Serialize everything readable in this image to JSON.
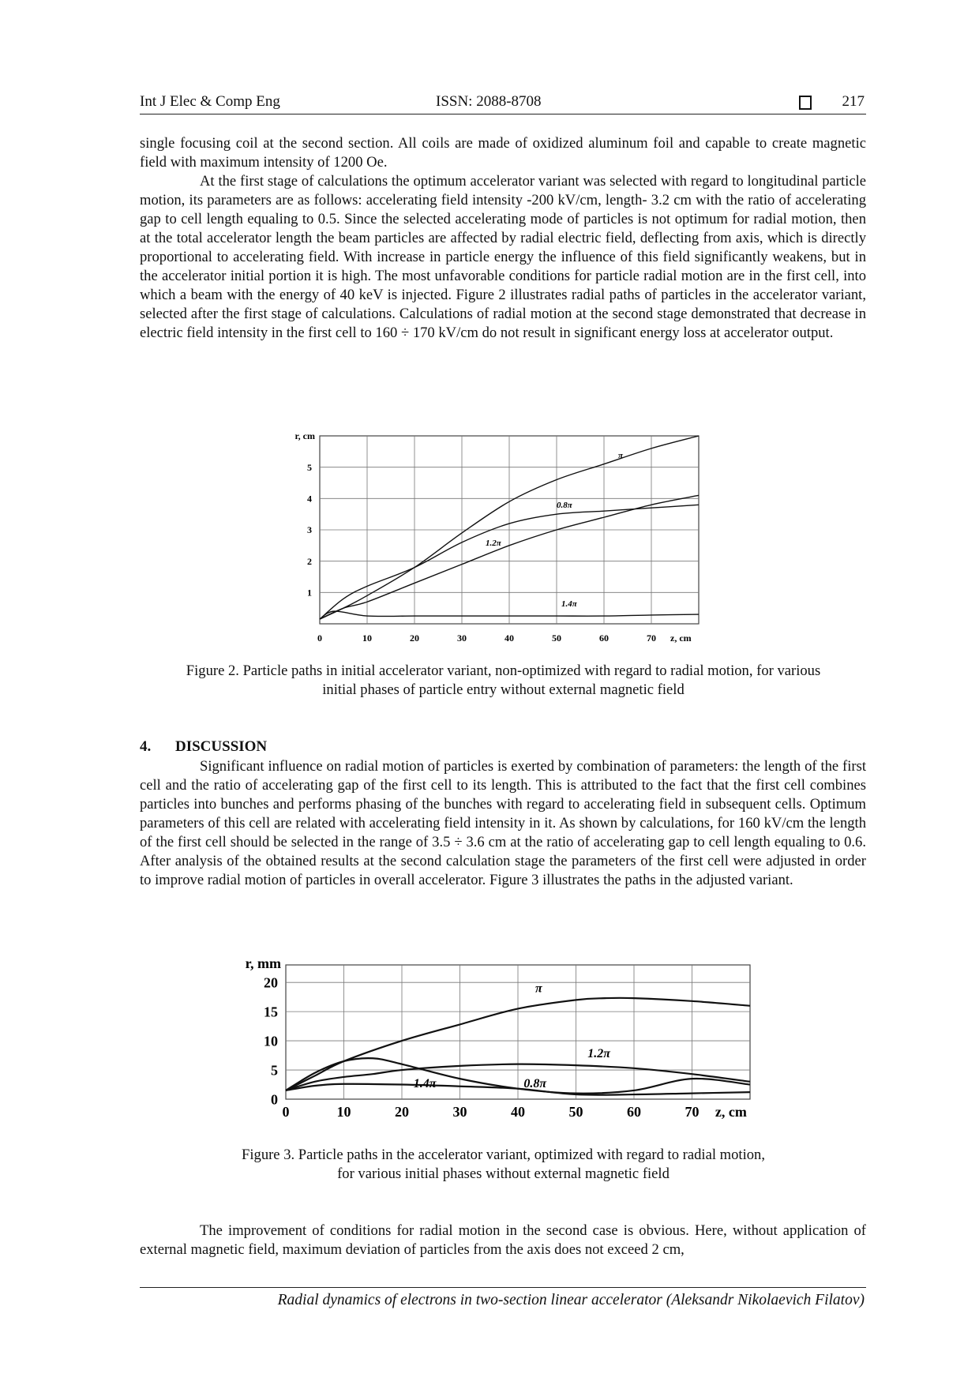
{
  "header": {
    "journal": "Int J Elec & Comp Eng",
    "issn": "ISSN: 2088-8708",
    "page": "217"
  },
  "paragraphs": [
    "single focusing coil at the second section. All coils are made of oxidized aluminum foil and capable to create magnetic field with maximum intensity of 1200 Oe.",
    "At the first stage of calculations the optimum accelerator variant was selected with regard to longitudinal particle motion, its parameters are as follows: accelerating field intensity -200 kV/cm, length- 3.2 cm with the ratio of accelerating gap to cell length equaling to 0.5. Since the selected accelerating mode of particles is not optimum for radial motion, then at the total accelerator length the beam particles are affected by radial electric field, deflecting from axis, which is directly proportional to accelerating field. With increase in particle energy the influence of this field significantly weakens, but in the accelerator initial portion it is high. The most unfavorable conditions for particle radial motion are in the first cell, into which a beam with the energy of 40 keV is injected. Figure 2 illustrates radial paths of particles in the accelerator variant, selected after the first stage of calculations. Calculations of radial motion at the second stage demonstrated that decrease in electric field intensity in the first cell to 160 ÷ 170 kV/cm do not result in significant energy loss at accelerator output."
  ],
  "figure2": {
    "caption_line1": "Figure 2. Particle paths in initial accelerator variant, non-optimized with regard to radial motion, for various",
    "caption_line2": "initial phases of particle entry without external magnetic field"
  },
  "section": {
    "number": "4.",
    "title": "DISCUSSION"
  },
  "discussion": "Significant influence on radial motion of particles is exerted by combination of parameters: the length of the first cell and the ratio of accelerating gap of the first cell to its length. This is attributed to the fact that the first cell combines particles into bunches and performs phasing of the bunches with regard to accelerating field in subsequent cells. Optimum parameters of this cell are related with accelerating field intensity in it. As shown by calculations, for 160 kV/cm the length of the first cell should be selected in the range of 3.5 ÷ 3.6 cm at the ratio of accelerating gap to cell length equaling to 0.6. After analysis of the obtained results at the second calculation stage the parameters of the first cell were adjusted in order to improve radial motion of particles in overall accelerator. Figure 3 illustrates the paths in the adjusted variant.",
  "figure3": {
    "caption_line1": "Figure 3. Particle paths in the accelerator variant, optimized with regard to radial motion,",
    "caption_line2": "for various initial phases without external magnetic field"
  },
  "last_paragraph": "The improvement of conditions for radial motion in the second case is obvious. Here, without application of external magnetic field, maximum deviation of particles from the axis does not exceed 2 cm,",
  "footer": "Radial dynamics of electrons in two-section linear accelerator (Aleksandr Nikolaevich Filatov)",
  "chart_data": [
    {
      "type": "line",
      "ylabel": "r, cm",
      "xlabel": "z, cm",
      "xlim": [
        0,
        80
      ],
      "ylim": [
        0,
        6
      ],
      "x_ticks": [
        0,
        10,
        20,
        30,
        40,
        50,
        60,
        70
      ],
      "y_ticks": [
        1,
        2,
        3,
        4,
        5
      ],
      "grid": true,
      "series": [
        {
          "name": "π",
          "x": [
            0,
            5,
            10,
            20,
            30,
            40,
            50,
            60,
            70,
            80
          ],
          "y": [
            0.15,
            0.5,
            0.9,
            1.8,
            2.9,
            3.9,
            4.6,
            5.1,
            5.6,
            6.0
          ]
        },
        {
          "name": "0.8π",
          "x": [
            0,
            5,
            10,
            20,
            30,
            40,
            50,
            60,
            70,
            80
          ],
          "y": [
            0.15,
            0.8,
            1.2,
            1.8,
            2.6,
            3.2,
            3.5,
            3.6,
            3.7,
            3.8
          ]
        },
        {
          "name": "1.2π",
          "x": [
            0,
            5,
            10,
            20,
            30,
            40,
            50,
            60,
            70,
            80
          ],
          "y": [
            0.15,
            0.5,
            0.7,
            1.3,
            1.9,
            2.5,
            3.0,
            3.4,
            3.8,
            4.1
          ]
        },
        {
          "name": "1.4π",
          "x": [
            0,
            3,
            10,
            20,
            30,
            40,
            50,
            60,
            70,
            80
          ],
          "y": [
            0.15,
            0.4,
            0.25,
            0.25,
            0.25,
            0.25,
            0.25,
            0.25,
            0.28,
            0.3
          ]
        }
      ]
    },
    {
      "type": "line",
      "ylabel": "r, mm",
      "xlabel": "z, cm",
      "xlim": [
        0,
        80
      ],
      "ylim": [
        0,
        23
      ],
      "x_ticks": [
        0,
        10,
        20,
        30,
        40,
        50,
        60,
        70
      ],
      "y_ticks": [
        0,
        5,
        10,
        15,
        20
      ],
      "grid": true,
      "series": [
        {
          "name": "π",
          "x": [
            0,
            5,
            10,
            20,
            30,
            40,
            50,
            55,
            60,
            70,
            80
          ],
          "y": [
            1.5,
            4,
            6.5,
            10,
            12.8,
            15.5,
            17,
            17.3,
            17.3,
            16.8,
            16
          ]
        },
        {
          "name": "1.2π",
          "x": [
            0,
            5,
            10,
            15,
            20,
            30,
            40,
            50,
            60,
            70,
            80
          ],
          "y": [
            1.5,
            3,
            3.8,
            4.3,
            5,
            5.7,
            6,
            5.8,
            5.3,
            4.3,
            3
          ]
        },
        {
          "name": "1.4π",
          "x": [
            0,
            5,
            10,
            15,
            20,
            30,
            40,
            50,
            60,
            70,
            80
          ],
          "y": [
            1.5,
            4.5,
            6.5,
            7,
            6,
            3.5,
            1.8,
            1.0,
            1.5,
            3.5,
            2.5
          ]
        },
        {
          "name": "0.8π",
          "x": [
            0,
            5,
            10,
            20,
            30,
            40,
            50,
            60,
            70,
            80
          ],
          "y": [
            1.5,
            2.3,
            2.6,
            2.5,
            2.2,
            1.8,
            0.8,
            0.8,
            1.0,
            1.2
          ]
        }
      ]
    }
  ]
}
